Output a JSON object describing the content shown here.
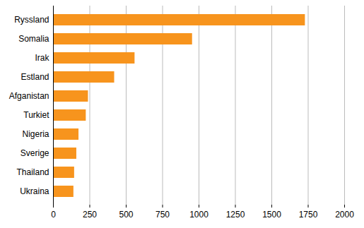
{
  "chart_data": {
    "type": "bar",
    "orientation": "horizontal",
    "categories": [
      "Ryssland",
      "Somalia",
      "Irak",
      "Estland",
      "Afganistan",
      "Turkiet",
      "Nigeria",
      "Sverige",
      "Thailand",
      "Ukraina"
    ],
    "values": [
      1730,
      955,
      560,
      420,
      240,
      225,
      175,
      160,
      145,
      140
    ],
    "color": "#f7941d",
    "xlim": [
      0,
      2000
    ],
    "xticks": [
      0,
      250,
      500,
      750,
      1000,
      1250,
      1500,
      1750,
      2000
    ],
    "grid": true
  }
}
